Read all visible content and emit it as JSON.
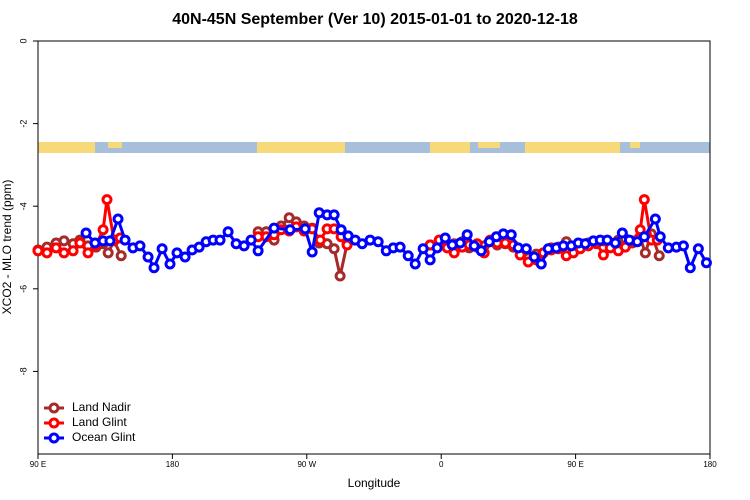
{
  "chart_data": {
    "type": "line",
    "title": "40N-45N September (Ver 10)   2015-01-01 to 2020-12-18",
    "xlabel": "Longitude",
    "ylabel": "XCO2 - MLO trend (ppm)",
    "xlim": [
      90,
      540
    ],
    "xticks": [
      {
        "value": 90,
        "label": "90 E"
      },
      180,
      {
        "value": 270,
        "label": "90 W"
      },
      {
        "value": 360,
        "label": "0"
      },
      {
        "value": 450,
        "label": "90 E"
      },
      {
        "value": 540,
        "label": "180"
      }
    ],
    "ylim": [
      -10,
      0
    ],
    "yticks": [
      0,
      -2,
      -4,
      -6,
      -8
    ],
    "legend": "lower left",
    "series": [
      {
        "name": "Land Nadir",
        "color": "#a52a2a",
        "x": [
          90,
          96,
          102.1,
          107.4,
          113.5,
          118.1,
          123.5,
          128.9,
          133.6,
          137,
          140.9,
          145.7,
          null,
          237.4,
          242.8,
          248.1,
          252.8,
          258.2,
          262.9,
          268.2,
          273.6,
          278.3,
          283.6,
          288.3,
          292.3,
          297,
          null,
          352.6,
          358.7,
          364,
          368.7,
          374.1,
          378.8,
          384.1,
          388.8,
          392.8,
          397.5,
          402.9,
          408.3,
          412.9,
          418.3,
          423.7,
          428.4,
          433.7,
          438.4,
          443.8,
          448.5,
          453.1,
          458.5,
          463.9,
          468.6,
          473.2,
          478.6,
          483.3,
          488,
          493.3,
          496.7,
          500.7,
          506
        ],
        "values": [
          -5.06,
          -4.99,
          -4.89,
          -4.84,
          -4.91,
          -4.82,
          -4.96,
          -4.99,
          -4.91,
          -5.13,
          -4.84,
          -5.2,
          null,
          -4.62,
          -4.62,
          -4.82,
          -4.48,
          -4.28,
          -4.38,
          -4.48,
          -4.53,
          -4.89,
          -4.91,
          -5.03,
          -5.69,
          -4.91,
          null,
          -4.94,
          -4.82,
          -4.94,
          -4.91,
          -4.86,
          -5.01,
          -4.99,
          -4.96,
          -4.86,
          -4.94,
          -4.91,
          -4.99,
          -5.06,
          -5.25,
          -5.16,
          -5.13,
          -5.01,
          -4.99,
          -4.86,
          -4.99,
          -4.91,
          -4.89,
          -4.91,
          -4.84,
          -4.89,
          -4.82,
          -4.79,
          -4.89,
          -4.77,
          -5.13,
          -4.67,
          -5.2
        ]
      },
      {
        "name": "Land Glint",
        "color": "#ff0000",
        "x": [
          90,
          96,
          102.1,
          107.4,
          113.5,
          118.1,
          123.5,
          128.9,
          133.6,
          136.2,
          140.9,
          145,
          null,
          237.4,
          242.8,
          248.1,
          252.8,
          258.2,
          262.9,
          268.2,
          273.6,
          279,
          283.6,
          288.3,
          293,
          297,
          null,
          352.6,
          358.7,
          364,
          368.7,
          374.1,
          378.8,
          384.1,
          388.8,
          392.8,
          397.5,
          402.9,
          408.3,
          412.9,
          418.3,
          423.7,
          428.4,
          433.7,
          438.4,
          443.8,
          448.5,
          453.1,
          458.5,
          463.9,
          468.6,
          473.2,
          478.6,
          483.3,
          488,
          493.3,
          496,
          500.7,
          504.7
        ],
        "values": [
          -5.08,
          -5.13,
          -5.01,
          -5.13,
          -5.08,
          -4.89,
          -5.13,
          -4.94,
          -4.57,
          -3.84,
          -4.82,
          -4.77,
          null,
          -4.74,
          -4.74,
          -4.69,
          -4.57,
          -4.6,
          -4.5,
          -4.6,
          -4.55,
          -4.82,
          -4.55,
          -4.55,
          -4.74,
          -4.94,
          null,
          -4.94,
          -4.82,
          -5.01,
          -5.13,
          -4.99,
          -4.94,
          -4.91,
          -5.13,
          -4.82,
          -4.89,
          -4.89,
          -4.94,
          -5.18,
          -5.35,
          -5.3,
          -5.13,
          -5.06,
          -5.03,
          -5.2,
          -5.13,
          -5.03,
          -4.96,
          -4.89,
          -5.18,
          -5.01,
          -5.08,
          -4.99,
          -4.84,
          -4.57,
          -3.84,
          -4.82,
          -4.82
        ]
      },
      {
        "name": "Ocean Glint",
        "color": "#0000ff",
        "x": [
          122.2,
          128.2,
          133.6,
          138.2,
          143.6,
          148.3,
          153.6,
          158.3,
          163.7,
          167.7,
          173.1,
          178.4,
          183.1,
          188.5,
          193.2,
          197.9,
          202.6,
          207.3,
          211.9,
          217.3,
          222.7,
          228,
          232.7,
          237.4,
          248.1,
          258.8,
          268.9,
          273.6,
          278.3,
          283.6,
          288.3,
          293,
          297.7,
          302.4,
          307.1,
          312.4,
          317.8,
          323.2,
          327.9,
          332.5,
          337.9,
          342.6,
          347.9,
          352.6,
          357.3,
          362.7,
          367.4,
          372.7,
          377.4,
          382.1,
          386.8,
          392.2,
          396.9,
          401.6,
          406.9,
          411.6,
          417,
          422.3,
          427,
          431.7,
          437.1,
          441.8,
          447.1,
          451.8,
          456.5,
          461.9,
          466.5,
          471.2,
          476.6,
          481.3,
          486,
          491.3,
          496,
          503.4,
          506.7,
          512.1,
          517.5,
          522.2,
          526.8,
          532.2,
          537.6
        ],
        "values": [
          -4.65,
          -4.89,
          -4.84,
          -4.84,
          -4.31,
          -4.82,
          -5.01,
          -4.96,
          -5.23,
          -5.49,
          -5.03,
          -5.4,
          -5.13,
          -5.23,
          -5.06,
          -4.99,
          -4.86,
          -4.82,
          -4.82,
          -4.62,
          -4.91,
          -4.96,
          -4.82,
          -5.08,
          -4.53,
          -4.57,
          -4.55,
          -5.11,
          -4.16,
          -4.21,
          -4.21,
          -4.57,
          -4.72,
          -4.82,
          -4.91,
          -4.82,
          -4.86,
          -5.08,
          -5.01,
          -4.99,
          -5.2,
          -5.4,
          -5.03,
          -5.3,
          -5.01,
          -4.77,
          -4.94,
          -4.89,
          -4.69,
          -4.96,
          -5.08,
          -4.86,
          -4.74,
          -4.67,
          -4.69,
          -5.01,
          -5.03,
          -5.23,
          -5.4,
          -5.03,
          -5.01,
          -4.96,
          -4.96,
          -4.89,
          -4.91,
          -4.84,
          -4.82,
          -4.82,
          -4.89,
          -4.65,
          -4.82,
          -4.86,
          -4.74,
          -4.31,
          -4.74,
          -5.01,
          -4.99,
          -4.96,
          -5.49,
          -5.03,
          -5.37
        ]
      }
    ]
  }
}
